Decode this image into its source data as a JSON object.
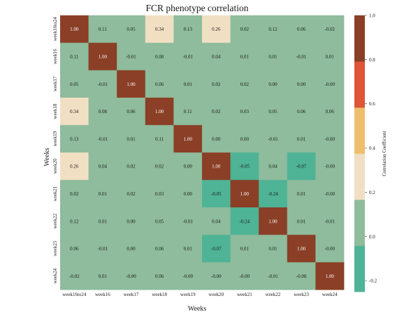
{
  "chart_data": {
    "type": "heatmap",
    "title": "FCR phenotype correlation",
    "xlabel": "Weeks",
    "ylabel": "Weeks",
    "categories": [
      "week16to24",
      "week16",
      "week17",
      "week18",
      "week19",
      "week20",
      "week21",
      "week22",
      "week23",
      "week24"
    ],
    "values": [
      [
        1.0,
        0.11,
        0.05,
        0.34,
        0.13,
        0.26,
        0.02,
        0.12,
        0.06,
        -0.02
      ],
      [
        0.11,
        1.0,
        -0.01,
        0.08,
        -0.01,
        0.04,
        0.01,
        0.01,
        -0.01,
        0.01
      ],
      [
        0.05,
        -0.01,
        1.0,
        0.06,
        0.01,
        0.02,
        0.02,
        0.0,
        0.0,
        -0.0
      ],
      [
        0.34,
        0.08,
        0.06,
        1.0,
        0.11,
        0.02,
        0.03,
        0.05,
        0.06,
        0.06
      ],
      [
        0.13,
        -0.01,
        0.01,
        0.11,
        1.0,
        0.0,
        0.0,
        -0.01,
        0.01,
        -0.0
      ],
      [
        0.26,
        0.04,
        0.02,
        0.02,
        0.0,
        1.0,
        -0.05,
        0.04,
        -0.07,
        -0.0
      ],
      [
        0.02,
        0.01,
        0.02,
        0.03,
        0.0,
        -0.05,
        1.0,
        -0.24,
        0.01,
        -0.0
      ],
      [
        0.12,
        0.01,
        0.0,
        0.05,
        -0.01,
        0.04,
        -0.24,
        1.0,
        0.01,
        -0.01
      ],
      [
        0.06,
        -0.01,
        0.0,
        0.06,
        0.01,
        -0.07,
        0.01,
        0.01,
        1.0,
        -0.0
      ],
      [
        -0.02,
        0.01,
        -0.0,
        0.06,
        -0.0,
        -0.0,
        -0.0,
        -0.01,
        -0.0,
        1.0
      ]
    ],
    "cell_labels": [
      [
        "1.00",
        "0.11",
        "0.05",
        "0.34",
        "0.13",
        "0.26",
        "0.02",
        "0.12",
        "0.06",
        "-0.02"
      ],
      [
        "0.11",
        "1.00",
        "-0.01",
        "0.08",
        "-0.01",
        "0.04",
        "0.01",
        "0.01",
        "-0.01",
        "0.01"
      ],
      [
        "0.05",
        "-0.01",
        "1.00",
        "0.06",
        "0.01",
        "0.02",
        "0.02",
        "0.00",
        "0.00",
        "-0.00"
      ],
      [
        "0.34",
        "0.08",
        "0.06",
        "1.00",
        "0.11",
        "0.02",
        "0.03",
        "0.05",
        "0.06",
        "0.06"
      ],
      [
        "0.13",
        "-0.01",
        "0.01",
        "0.11",
        "1.00",
        "0.00",
        "0.00",
        "-0.01",
        "0.01",
        "-0.00"
      ],
      [
        "0.26",
        "0.04",
        "0.02",
        "0.02",
        "0.00",
        "1.00",
        "-0.05",
        "0.04",
        "-0.07",
        "-0.00"
      ],
      [
        "0.02",
        "0.01",
        "0.02",
        "0.03",
        "0.00",
        "-0.05",
        "1.00",
        "-0.24",
        "0.01",
        "-0.00"
      ],
      [
        "0.12",
        "0.01",
        "0.00",
        "0.05",
        "-0.01",
        "0.04",
        "-0.24",
        "1.00",
        "0.01",
        "-0.01"
      ],
      [
        "0.06",
        "-0.01",
        "0.00",
        "0.06",
        "0.01",
        "-0.07",
        "0.01",
        "0.01",
        "1.00",
        "-0.00"
      ],
      [
        "-0.02",
        "0.01",
        "-0.00",
        "0.06",
        "-0.00",
        "-0.00",
        "-0.00",
        "-0.01",
        "-0.00",
        "1.00"
      ]
    ],
    "colorbar": {
      "title": "Correlation Coefficient",
      "vmin": -0.25,
      "vmax": 1.0,
      "ticks": [
        -0.2,
        0.0,
        0.2,
        0.4,
        0.6,
        0.8,
        1.0
      ],
      "tick_labels": [
        "-0.2",
        "0.0",
        "0.2",
        "0.4",
        "0.6",
        "0.8",
        "1.0"
      ],
      "bins": [
        {
          "from": -0.25,
          "to": -0.0417,
          "color": "#4fb395"
        },
        {
          "from": -0.0417,
          "to": 0.1667,
          "color": "#8ebc9c"
        },
        {
          "from": 0.1667,
          "to": 0.375,
          "color": "#f1dfc4"
        },
        {
          "from": 0.375,
          "to": 0.5833,
          "color": "#eebe6c"
        },
        {
          "from": 0.5833,
          "to": 0.7917,
          "color": "#de5538"
        },
        {
          "from": 0.7917,
          "to": 1.0,
          "color": "#8a3f26"
        }
      ]
    },
    "grid": false,
    "legend_position": "right"
  }
}
